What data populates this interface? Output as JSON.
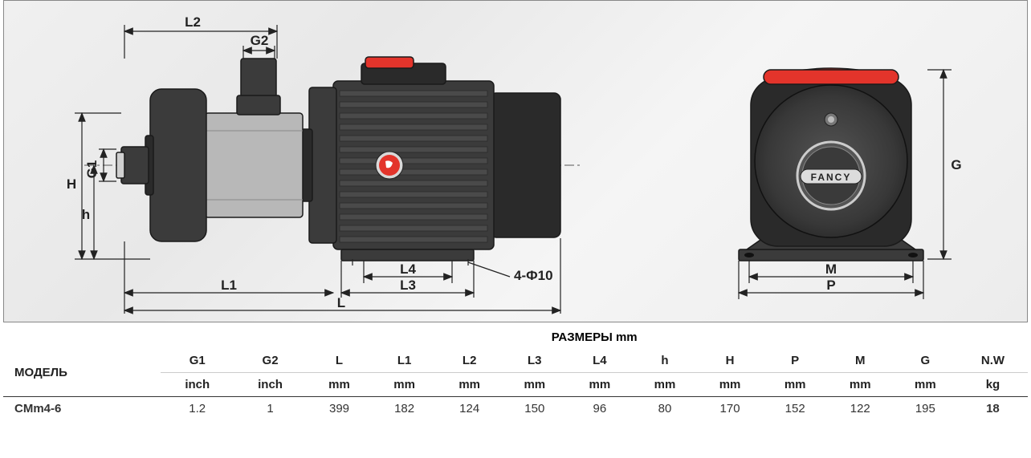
{
  "diagram": {
    "type": "engineering-drawing",
    "background_gradient": [
      "#f0f0f0",
      "#e8e8e8",
      "#f5f5f5",
      "#ececec"
    ],
    "dimension_color": "#222222",
    "body_colors": {
      "dark": "#3b3b3b",
      "darker": "#2a2a2a",
      "red": "#e3342b",
      "silver": "#b8b8b8"
    },
    "brand_text": "FANCY",
    "dim_labels": {
      "L2": "L2",
      "G2": "G2",
      "H": "H",
      "G1": "G1",
      "h": "h",
      "L4": "L4",
      "L3": "L3",
      "L1": "L1",
      "L": "L",
      "hole": "4-Ф10",
      "M": "M",
      "P": "P",
      "G": "G"
    }
  },
  "table": {
    "title": "РАЗМЕРЫ mm",
    "model_header": "МОДЕЛЬ",
    "columns": [
      {
        "name": "G1",
        "unit": "inch"
      },
      {
        "name": "G2",
        "unit": "inch"
      },
      {
        "name": "L",
        "unit": "mm"
      },
      {
        "name": "L1",
        "unit": "mm"
      },
      {
        "name": "L2",
        "unit": "mm"
      },
      {
        "name": "L3",
        "unit": "mm"
      },
      {
        "name": "L4",
        "unit": "mm"
      },
      {
        "name": "h",
        "unit": "mm"
      },
      {
        "name": "H",
        "unit": "mm"
      },
      {
        "name": "P",
        "unit": "mm"
      },
      {
        "name": "M",
        "unit": "mm"
      },
      {
        "name": "G",
        "unit": "mm"
      },
      {
        "name": "N.W",
        "unit": "kg"
      }
    ],
    "rows": [
      {
        "model": "CMm4-6",
        "values": [
          "1.2",
          "1",
          "399",
          "182",
          "124",
          "150",
          "96",
          "80",
          "170",
          "152",
          "122",
          "195",
          "18"
        ]
      }
    ]
  }
}
